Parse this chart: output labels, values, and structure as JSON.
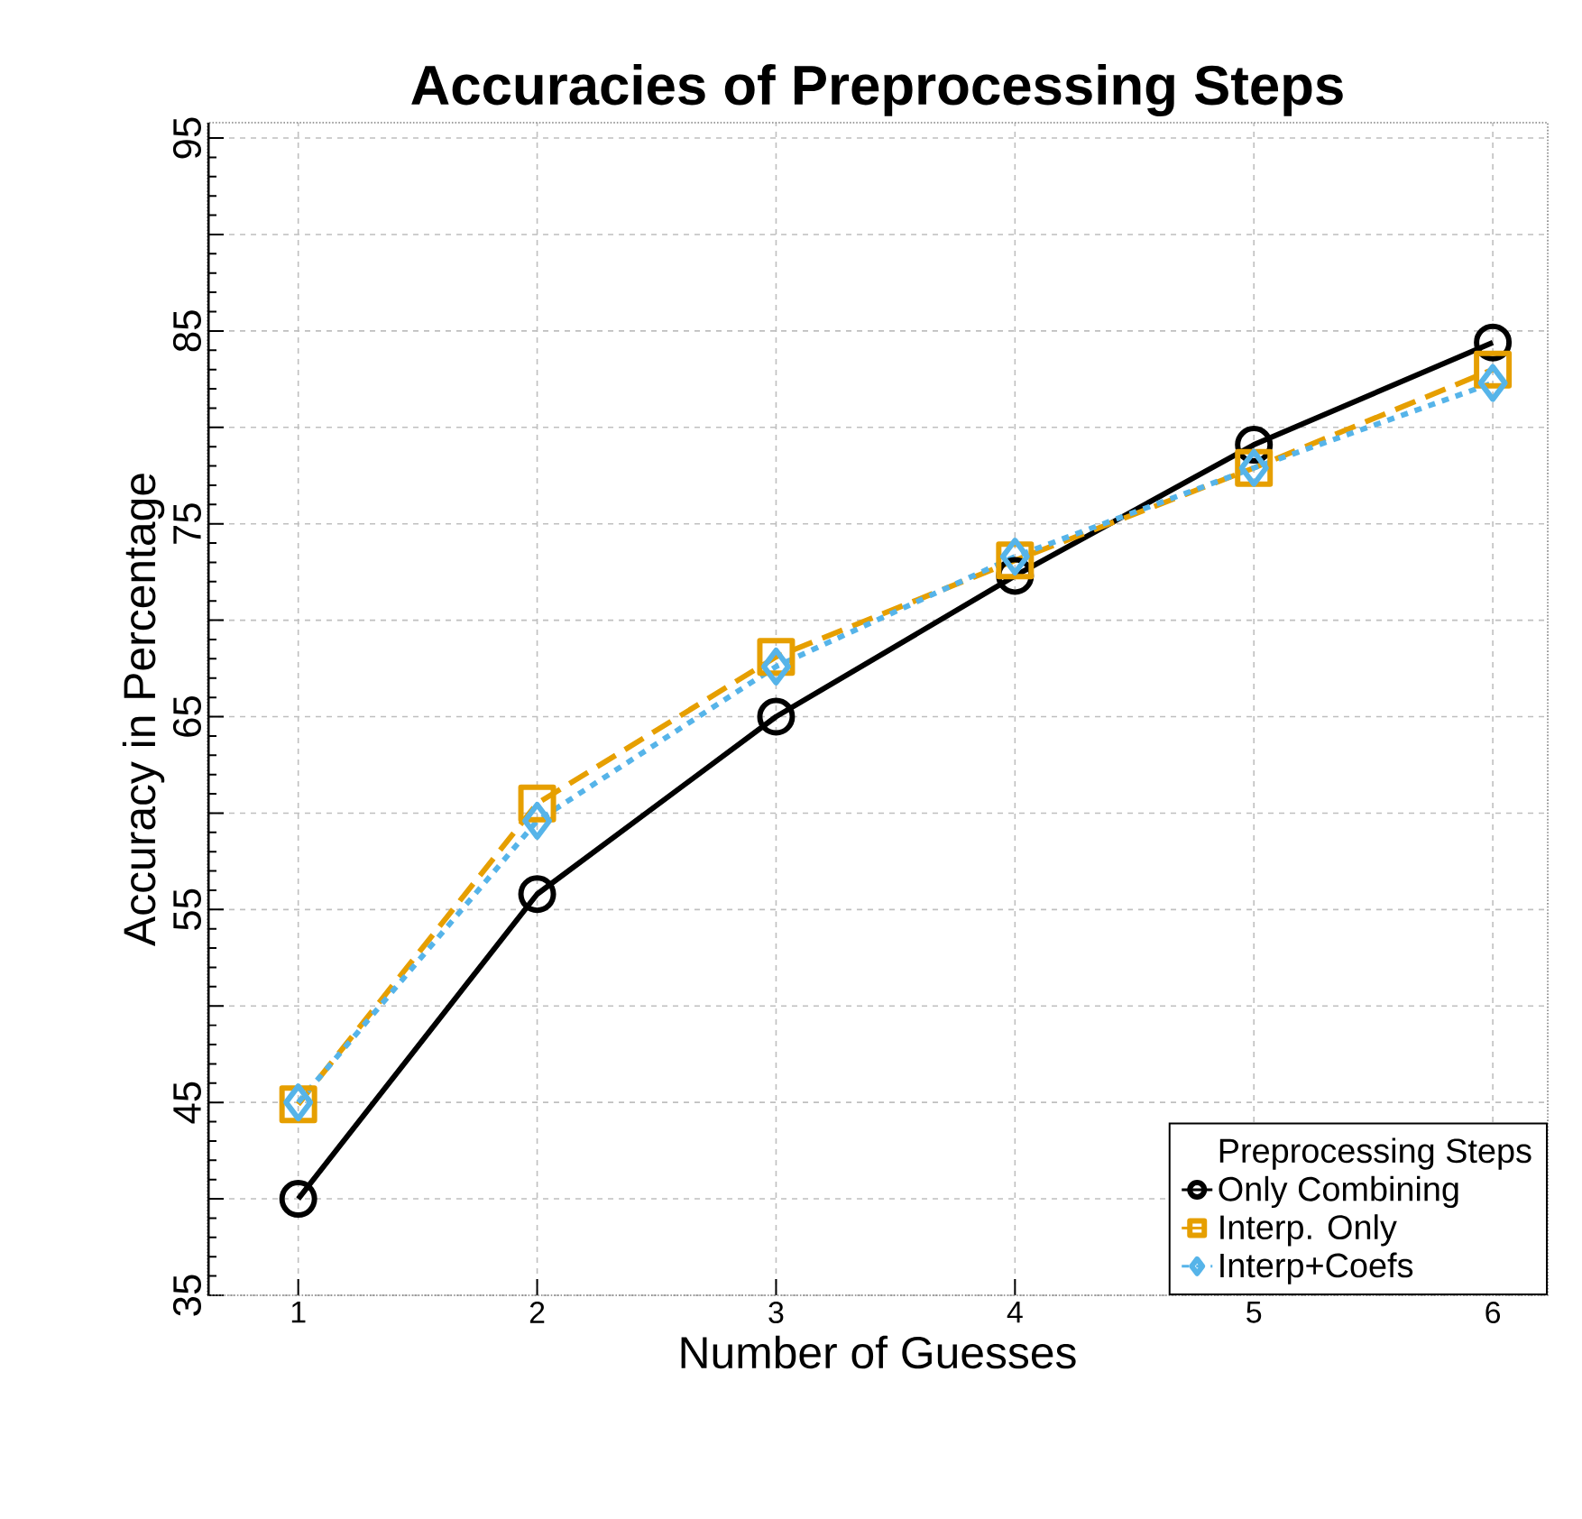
{
  "chart_data": {
    "type": "line",
    "title": "Accuracies of Preprocessing Steps",
    "xlabel": "Number of Guesses",
    "ylabel": "Accuracy in Percentage",
    "legend_title": "Preprocessing Steps",
    "x": [
      1,
      2,
      3,
      4,
      5,
      6
    ],
    "series": [
      {
        "name": "Only Combining",
        "color": "#000000",
        "marker": "circle",
        "line_style": "solid",
        "values": [
          40.0,
          55.8,
          65.0,
          72.3,
          79.1,
          84.4
        ]
      },
      {
        "name": "Interp. Only",
        "color": "#e69f00",
        "marker": "square",
        "line_style": "dashed",
        "values": [
          44.9,
          60.5,
          68.1,
          73.1,
          77.9,
          83.0
        ]
      },
      {
        "name": "Interp+Coefs",
        "color": "#56b4e9",
        "marker": "diamond",
        "line_style": "dotted",
        "values": [
          45.0,
          59.6,
          67.6,
          73.3,
          77.9,
          82.3
        ]
      }
    ],
    "xlim": [
      0.62,
      6.23
    ],
    "ylim": [
      35,
      95.8
    ],
    "xticks": [
      1,
      2,
      3,
      4,
      5,
      6
    ],
    "yticks": [
      35,
      {
        "value": 40,
        "label": null
      },
      45,
      {
        "value": 50,
        "label": null
      },
      55,
      {
        "value": 60,
        "label": null
      },
      65,
      {
        "value": 70,
        "label": null
      },
      75,
      {
        "value": 80,
        "label": null
      },
      85,
      {
        "value": 90,
        "label": null
      },
      95
    ],
    "grid": true,
    "legend": "bottom right"
  }
}
